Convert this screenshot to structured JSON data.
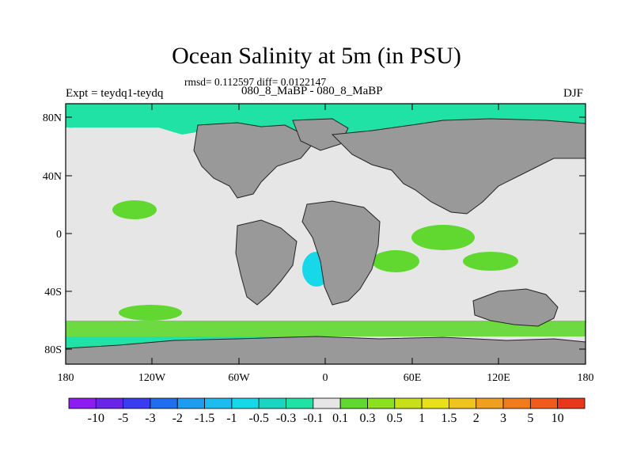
{
  "title": "Ocean Salinity at 5m (in PSU)",
  "stats": "rmsd= 0.112597 diff= 0.0122147",
  "experiment": "Expt = teydq1-teydq",
  "runs": "080_8_MaBP - 080_8_MaBP",
  "season": "DJF",
  "map": {
    "lat_ticks": [
      "80N",
      "40N",
      "0",
      "40S",
      "80S"
    ],
    "lon_ticks": [
      "180",
      "120W",
      "60W",
      "0",
      "60E",
      "120E",
      "180"
    ],
    "ocean_color": "#e6e6e6",
    "land_color": "#999999"
  },
  "colorbar": {
    "labels": [
      "-10",
      "-5",
      "-3",
      "-2",
      "-1.5",
      "-1",
      "-0.5",
      "-0.3",
      "-0.1",
      "0.1",
      "0.3",
      "0.5",
      "1",
      "1.5",
      "2",
      "3",
      "5",
      "10"
    ],
    "colors": [
      "#8c1cf0",
      "#6a24e8",
      "#3a3cf0",
      "#1f6ef0",
      "#1e9cf0",
      "#1cbcf0",
      "#16d8e8",
      "#1ad6c0",
      "#20e2a4",
      "#e6e6e6",
      "#60d830",
      "#8ce020",
      "#c8e01a",
      "#e8e01c",
      "#f0c41e",
      "#f0a01e",
      "#f07c1c",
      "#f05a1c",
      "#e8381c"
    ]
  }
}
